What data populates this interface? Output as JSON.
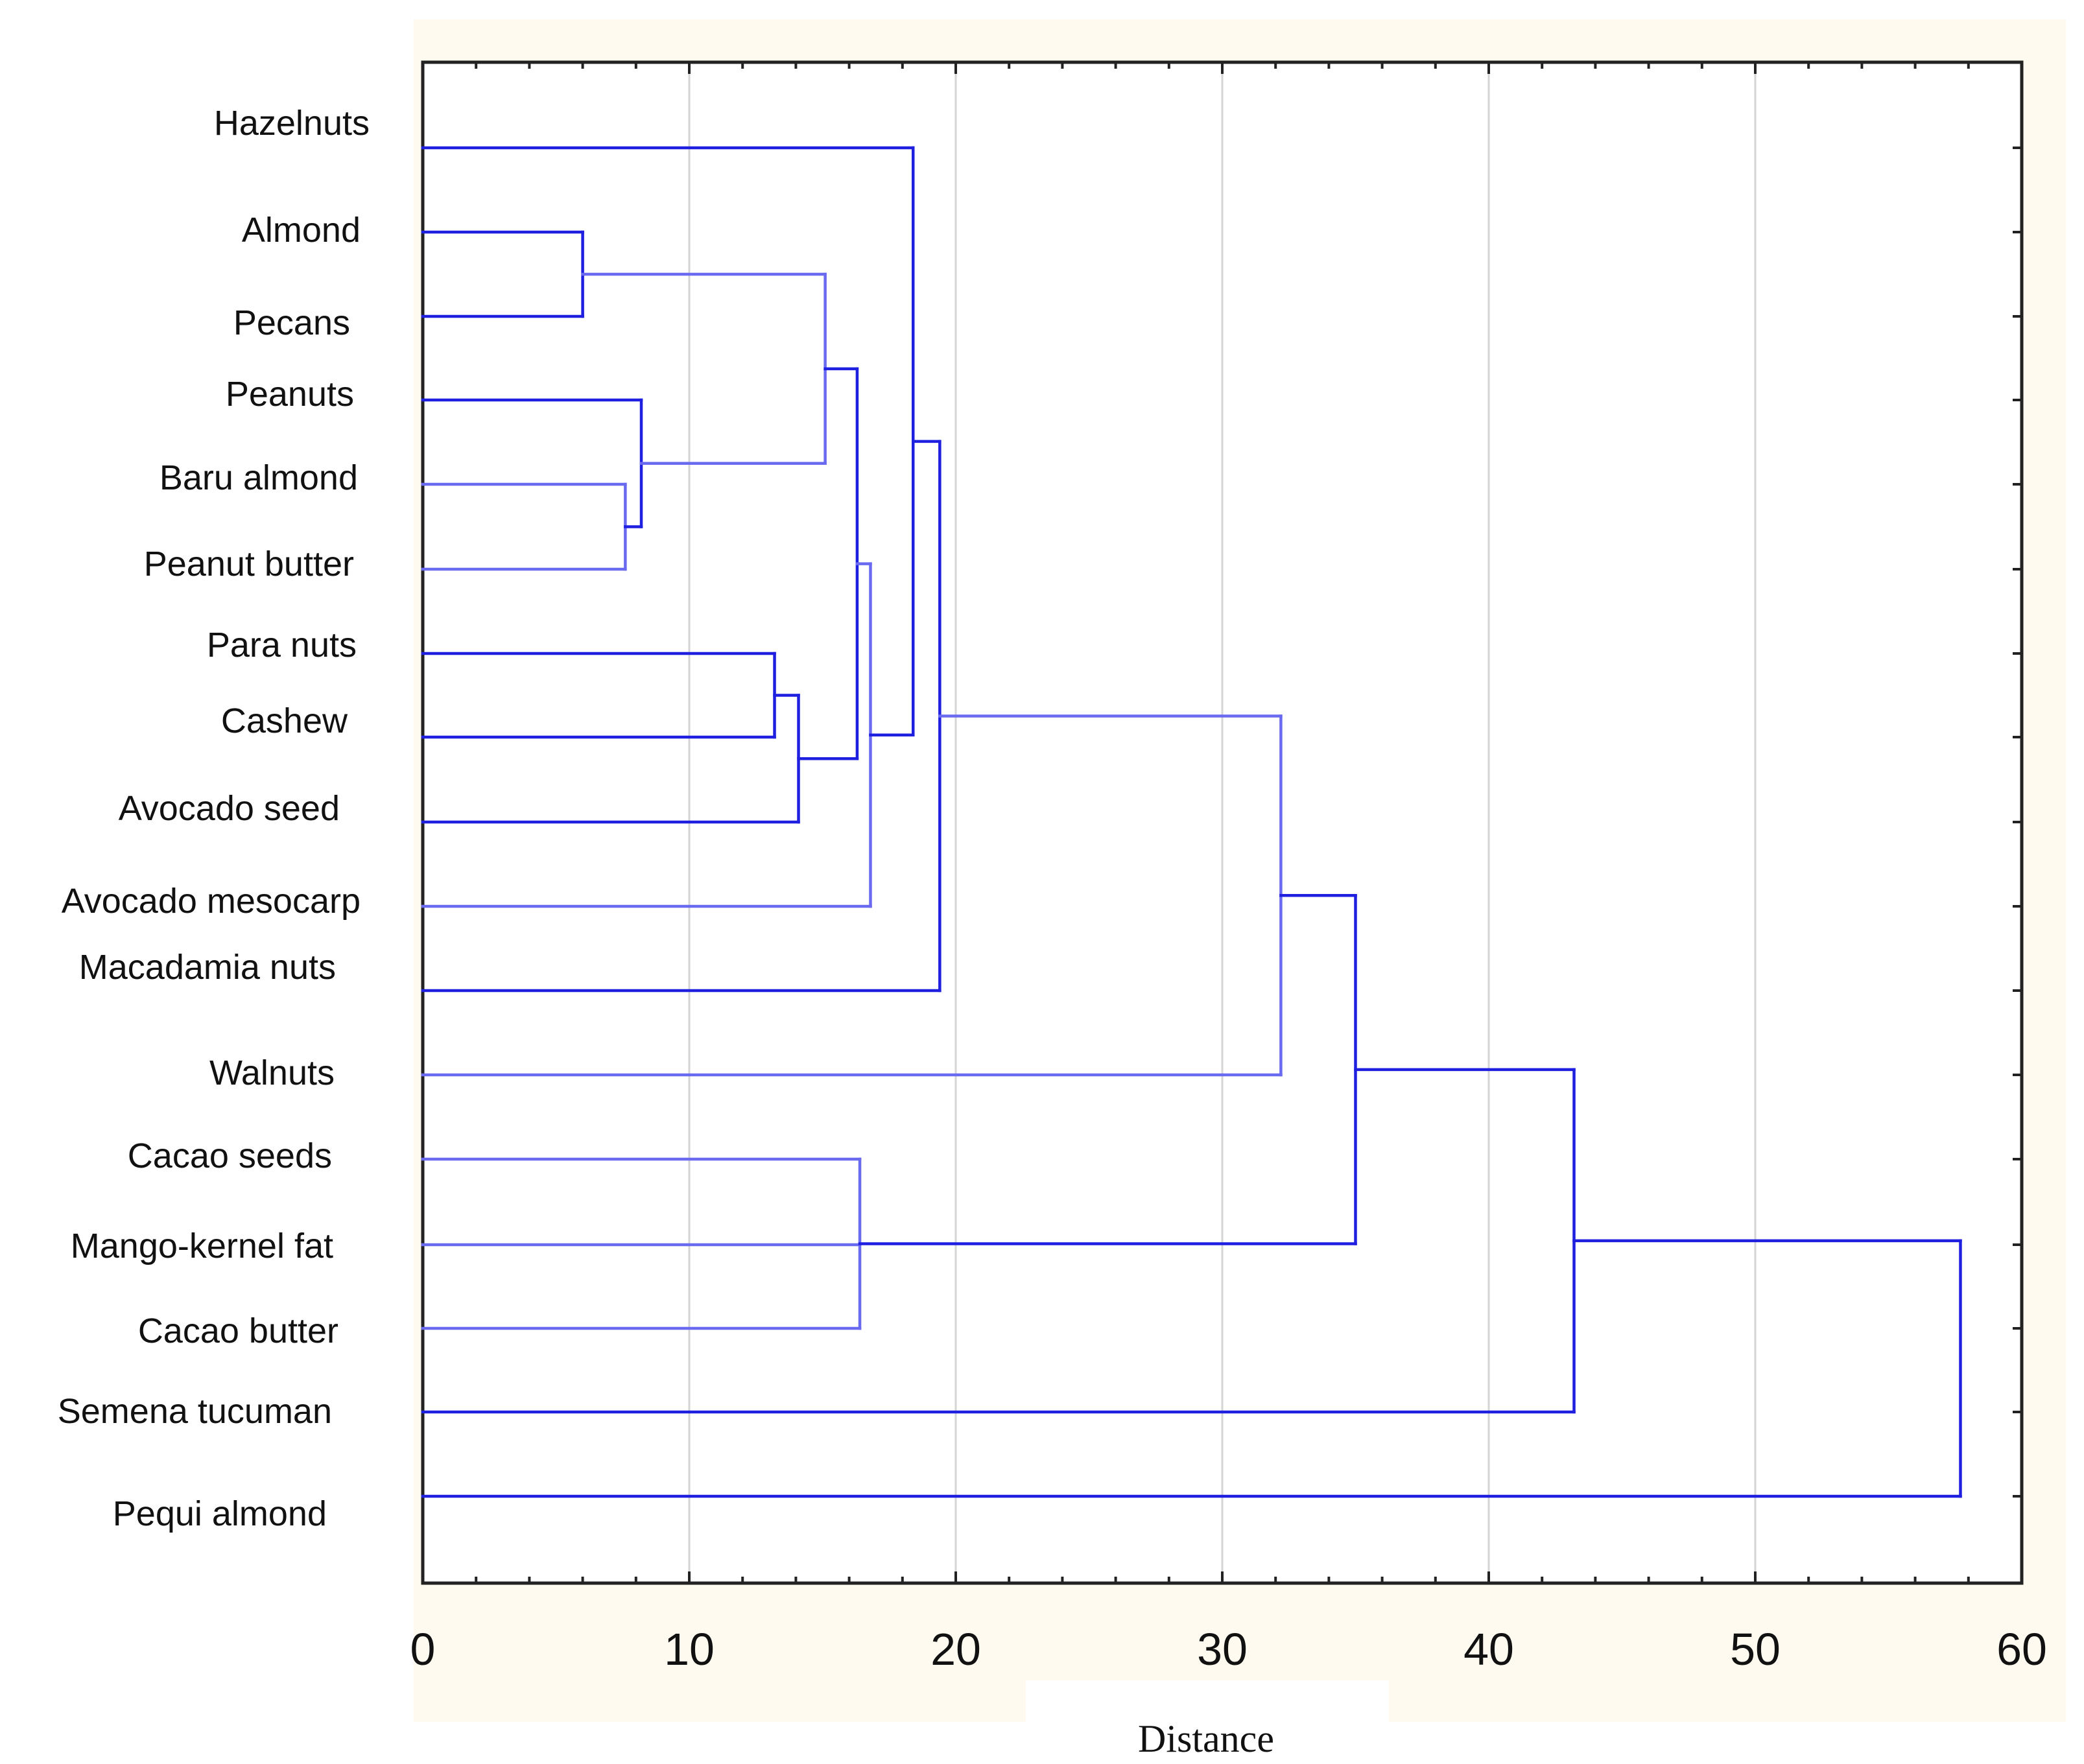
{
  "chart_data": {
    "type": "dendrogram",
    "title": "",
    "xlabel": "Distance",
    "ylabel": "",
    "xlim": [
      0,
      60
    ],
    "x_ticks": [
      0,
      10,
      20,
      30,
      40,
      50,
      60
    ],
    "x_tick_labels": [
      "0",
      "10",
      "20",
      "30",
      "40",
      "50",
      "60"
    ],
    "grid": true,
    "leaves": [
      "Hazelnuts",
      "Almond",
      "Pecans",
      "Peanuts",
      "Baru almond",
      "Peanut butter",
      "Para nuts",
      "Cashew",
      "Avocado seed",
      "Avocado mesocarp",
      "Macadamia nuts",
      "Walnuts",
      "Cacao seeds",
      "Mango-kernel fat",
      "Cacao butter",
      "Semena tucuman",
      "Pequi almond"
    ],
    "merges": [
      {
        "id": "m1",
        "children": [
          "Almond",
          "Pecans"
        ],
        "distance": 6.0
      },
      {
        "id": "m2",
        "children": [
          "Baru almond",
          "Peanut butter"
        ],
        "distance": 7.6
      },
      {
        "id": "m3",
        "children": [
          "Peanuts",
          "m2"
        ],
        "distance": 8.2
      },
      {
        "id": "m4",
        "children": [
          "Para nuts",
          "Cashew"
        ],
        "distance": 13.2
      },
      {
        "id": "m5",
        "children": [
          "m4",
          "Avocado seed"
        ],
        "distance": 14.1
      },
      {
        "id": "m6",
        "children": [
          "m1",
          "m3"
        ],
        "distance": 15.1
      },
      {
        "id": "m7",
        "children": [
          "m6",
          "m5"
        ],
        "distance": 16.3
      },
      {
        "id": "m8",
        "children": [
          "m7",
          "Avocado mesocarp"
        ],
        "distance": 16.8
      },
      {
        "id": "m9",
        "children": [
          "Cacao seeds",
          "Mango-kernel fat",
          "Cacao butter"
        ],
        "distance": 16.4
      },
      {
        "id": "m10",
        "children": [
          "Hazelnuts",
          "m8"
        ],
        "distance": 18.4
      },
      {
        "id": "m11",
        "children": [
          "m10",
          "Macadamia nuts"
        ],
        "distance": 19.4
      },
      {
        "id": "m12",
        "children": [
          "m11",
          "Walnuts"
        ],
        "distance": 32.2
      },
      {
        "id": "m13",
        "children": [
          "m12",
          "m9"
        ],
        "distance": 35.0
      },
      {
        "id": "m14",
        "children": [
          "m13",
          "Semena tucuman"
        ],
        "distance": 43.2
      },
      {
        "id": "m15",
        "children": [
          "m14",
          "Pequi almond"
        ],
        "distance": 57.7
      }
    ]
  },
  "colors": {
    "link": "#1f1fe0",
    "link_light": "#6a6af0",
    "background": "#fefaf0",
    "grid": "#d4d4d4",
    "frame": "#222222"
  }
}
